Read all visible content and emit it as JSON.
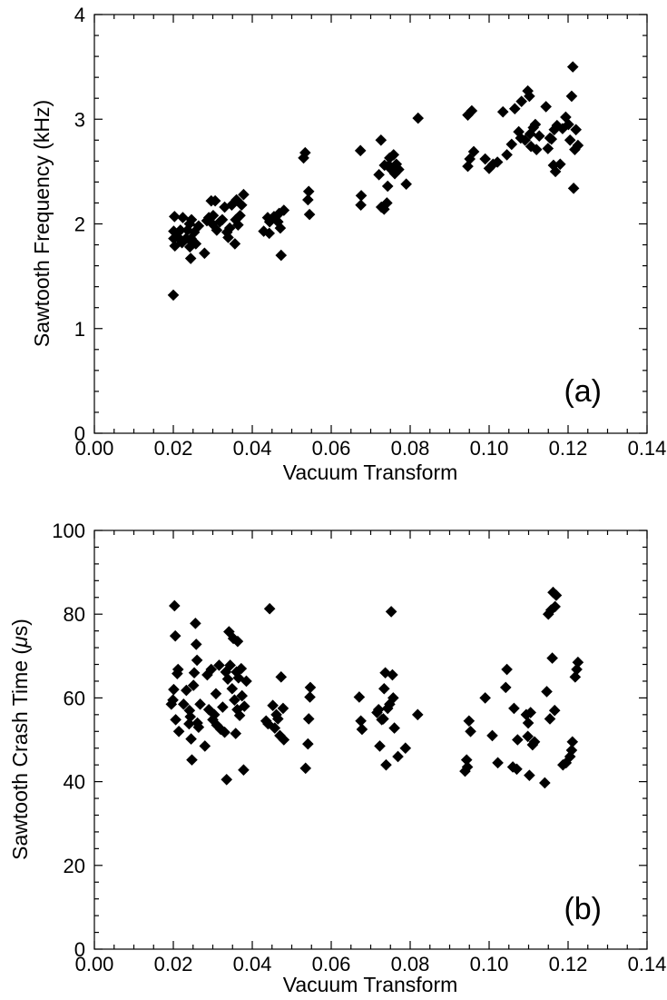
{
  "chart_data": [
    {
      "type": "scatter",
      "panel_label": "(a)",
      "xlabel": "Vacuum Transform",
      "ylabel": "Sawtooth Frequency (kHz)",
      "xlim": [
        0,
        0.14
      ],
      "ylim": [
        0,
        4
      ],
      "x_ticks": [
        0,
        0.02,
        0.04,
        0.06,
        0.08,
        0.1,
        0.12,
        0.14
      ],
      "x_tick_labels": [
        "0.00",
        "0.02",
        "0.04",
        "0.06",
        "0.08",
        "0.10",
        "0.12",
        "0.14"
      ],
      "y_ticks": [
        0,
        1,
        2,
        3,
        4
      ],
      "y_tick_labels": [
        "0",
        "1",
        "2",
        "3",
        "4"
      ],
      "marker": "diamond",
      "marker_color": "#000000",
      "grid": false,
      "legend": "none",
      "points": [
        [
          0.02,
          1.32
        ],
        [
          0.0201,
          1.86
        ],
        [
          0.0201,
          1.93
        ],
        [
          0.0203,
          2.07
        ],
        [
          0.0204,
          1.79
        ],
        [
          0.021,
          1.88
        ],
        [
          0.0218,
          1.94
        ],
        [
          0.0222,
          1.82
        ],
        [
          0.0224,
          2.06
        ],
        [
          0.0232,
          1.86
        ],
        [
          0.0236,
          1.94
        ],
        [
          0.0241,
          2.0
        ],
        [
          0.0242,
          1.78
        ],
        [
          0.0244,
          1.67
        ],
        [
          0.0245,
          1.86
        ],
        [
          0.0246,
          2.04
        ],
        [
          0.0249,
          1.82
        ],
        [
          0.0253,
          1.92
        ],
        [
          0.0257,
          1.81
        ],
        [
          0.0264,
          1.98
        ],
        [
          0.0279,
          1.72
        ],
        [
          0.0285,
          2.03
        ],
        [
          0.029,
          2.06
        ],
        [
          0.0296,
          2.22
        ],
        [
          0.0299,
          2.0
        ],
        [
          0.0301,
          2.08
        ],
        [
          0.0306,
          2.22
        ],
        [
          0.031,
          1.94
        ],
        [
          0.0318,
          2.02
        ],
        [
          0.0324,
          2.04
        ],
        [
          0.033,
          2.16
        ],
        [
          0.0336,
          1.92
        ],
        [
          0.0339,
          1.87
        ],
        [
          0.0343,
          1.96
        ],
        [
          0.0348,
          2.18
        ],
        [
          0.0356,
          1.81
        ],
        [
          0.0358,
          2.04
        ],
        [
          0.036,
          2.23
        ],
        [
          0.0364,
          1.99
        ],
        [
          0.0369,
          2.08
        ],
        [
          0.0373,
          2.18
        ],
        [
          0.0378,
          2.28
        ],
        [
          0.0429,
          1.93
        ],
        [
          0.0439,
          2.06
        ],
        [
          0.0443,
          1.91
        ],
        [
          0.0444,
          2.02
        ],
        [
          0.0455,
          2.07
        ],
        [
          0.0465,
          2.02
        ],
        [
          0.0468,
          2.1
        ],
        [
          0.0471,
          1.96
        ],
        [
          0.0473,
          1.7
        ],
        [
          0.048,
          2.13
        ],
        [
          0.053,
          2.63
        ],
        [
          0.0534,
          2.68
        ],
        [
          0.0541,
          2.23
        ],
        [
          0.0543,
          2.31
        ],
        [
          0.0545,
          2.09
        ],
        [
          0.0674,
          2.7
        ],
        [
          0.0675,
          2.18
        ],
        [
          0.0676,
          2.27
        ],
        [
          0.0721,
          2.47
        ],
        [
          0.0726,
          2.8
        ],
        [
          0.0727,
          2.16
        ],
        [
          0.0734,
          2.14
        ],
        [
          0.0735,
          2.56
        ],
        [
          0.0741,
          2.2
        ],
        [
          0.0743,
          2.36
        ],
        [
          0.0746,
          2.56
        ],
        [
          0.0748,
          2.63
        ],
        [
          0.0752,
          2.52
        ],
        [
          0.0758,
          2.66
        ],
        [
          0.0761,
          2.48
        ],
        [
          0.0765,
          2.57
        ],
        [
          0.0771,
          2.52
        ],
        [
          0.079,
          2.38
        ],
        [
          0.082,
          3.01
        ],
        [
          0.0946,
          2.55
        ],
        [
          0.0946,
          3.04
        ],
        [
          0.0951,
          2.62
        ],
        [
          0.0956,
          3.08
        ],
        [
          0.0961,
          2.69
        ],
        [
          0.099,
          2.62
        ],
        [
          0.1,
          2.53
        ],
        [
          0.101,
          2.57
        ],
        [
          0.1021,
          2.59
        ],
        [
          0.1035,
          3.07
        ],
        [
          0.1045,
          2.66
        ],
        [
          0.1057,
          2.76
        ],
        [
          0.1065,
          3.1
        ],
        [
          0.1075,
          2.88
        ],
        [
          0.108,
          2.82
        ],
        [
          0.1082,
          3.17
        ],
        [
          0.1091,
          2.8
        ],
        [
          0.1098,
          3.27
        ],
        [
          0.1102,
          3.22
        ],
        [
          0.1104,
          2.86
        ],
        [
          0.1106,
          2.74
        ],
        [
          0.1112,
          2.92
        ],
        [
          0.1117,
          2.95
        ],
        [
          0.112,
          2.71
        ],
        [
          0.1127,
          2.84
        ],
        [
          0.1144,
          3.12
        ],
        [
          0.1149,
          2.72
        ],
        [
          0.1154,
          2.82
        ],
        [
          0.1158,
          2.81
        ],
        [
          0.1163,
          2.56
        ],
        [
          0.1165,
          2.9
        ],
        [
          0.1168,
          2.5
        ],
        [
          0.1172,
          2.94
        ],
        [
          0.118,
          2.57
        ],
        [
          0.1186,
          2.91
        ],
        [
          0.1194,
          3.02
        ],
        [
          0.1201,
          2.95
        ],
        [
          0.1205,
          2.8
        ],
        [
          0.1209,
          3.22
        ],
        [
          0.1212,
          3.5
        ],
        [
          0.1214,
          2.34
        ],
        [
          0.1217,
          2.71
        ],
        [
          0.122,
          2.9
        ],
        [
          0.1225,
          2.75
        ]
      ]
    },
    {
      "type": "scatter",
      "panel_label": "(b)",
      "xlabel": "Vacuum Transform",
      "ylabel": "Sawtooth Crash Time (",
      "ylabel_symbol": "μ",
      "ylabel_unit_end": "s)",
      "xlim": [
        0,
        0.14
      ],
      "ylim": [
        0,
        100
      ],
      "x_ticks": [
        0,
        0.02,
        0.04,
        0.06,
        0.08,
        0.1,
        0.12,
        0.14
      ],
      "x_tick_labels": [
        "0.00",
        "0.02",
        "0.04",
        "0.06",
        "0.08",
        "0.10",
        "0.12",
        "0.14"
      ],
      "y_ticks": [
        0,
        20,
        40,
        60,
        80,
        100
      ],
      "y_tick_labels": [
        "0",
        "20",
        "40",
        "60",
        "80",
        "100"
      ],
      "marker": "diamond",
      "marker_color": "#000000",
      "grid": false,
      "legend": "none",
      "points": [
        [
          0.0195,
          58.5
        ],
        [
          0.0199,
          59.5
        ],
        [
          0.0201,
          62.0
        ],
        [
          0.0203,
          82.0
        ],
        [
          0.0205,
          74.8
        ],
        [
          0.0206,
          54.8
        ],
        [
          0.021,
          65.8
        ],
        [
          0.0212,
          66.8
        ],
        [
          0.0214,
          52.0
        ],
        [
          0.0226,
          58.5
        ],
        [
          0.0233,
          61.8
        ],
        [
          0.024,
          53.8
        ],
        [
          0.0241,
          57.0
        ],
        [
          0.0243,
          55.5
        ],
        [
          0.0245,
          50.2
        ],
        [
          0.0247,
          45.2
        ],
        [
          0.0251,
          63.0
        ],
        [
          0.0253,
          66.0
        ],
        [
          0.0256,
          77.8
        ],
        [
          0.0258,
          72.8
        ],
        [
          0.026,
          69.0
        ],
        [
          0.0261,
          54.0
        ],
        [
          0.0264,
          53.0
        ],
        [
          0.0268,
          58.5
        ],
        [
          0.028,
          48.5
        ],
        [
          0.0286,
          65.5
        ],
        [
          0.029,
          57.2
        ],
        [
          0.0296,
          66.8
        ],
        [
          0.03,
          54.8
        ],
        [
          0.0304,
          56.0
        ],
        [
          0.0308,
          61.0
        ],
        [
          0.031,
          53.5
        ],
        [
          0.0316,
          67.8
        ],
        [
          0.032,
          52.5
        ],
        [
          0.0325,
          57.8
        ],
        [
          0.033,
          51.8
        ],
        [
          0.0333,
          66.2
        ],
        [
          0.0335,
          40.5
        ],
        [
          0.0338,
          64.5
        ],
        [
          0.0341,
          75.8
        ],
        [
          0.0344,
          67.8
        ],
        [
          0.0349,
          62.2
        ],
        [
          0.0352,
          74.2
        ],
        [
          0.0355,
          59.5
        ],
        [
          0.0358,
          51.5
        ],
        [
          0.036,
          66.2
        ],
        [
          0.0362,
          57.2
        ],
        [
          0.0363,
          73.5
        ],
        [
          0.0365,
          64.8
        ],
        [
          0.0368,
          55.8
        ],
        [
          0.0372,
          67.0
        ],
        [
          0.0374,
          60.5
        ],
        [
          0.0378,
          42.8
        ],
        [
          0.038,
          58.0
        ],
        [
          0.0385,
          64.0
        ],
        [
          0.0435,
          54.5
        ],
        [
          0.044,
          53.8
        ],
        [
          0.0444,
          81.3
        ],
        [
          0.0452,
          58.2
        ],
        [
          0.0457,
          52.8
        ],
        [
          0.0461,
          56.0
        ],
        [
          0.0465,
          55.0
        ],
        [
          0.047,
          51.0
        ],
        [
          0.0473,
          65.0
        ],
        [
          0.0478,
          57.5
        ],
        [
          0.048,
          50.0
        ],
        [
          0.0535,
          43.2
        ],
        [
          0.0541,
          49.0
        ],
        [
          0.0543,
          55.0
        ],
        [
          0.0546,
          60.2
        ],
        [
          0.0547,
          62.5
        ],
        [
          0.0671,
          60.2
        ],
        [
          0.0675,
          54.5
        ],
        [
          0.0678,
          52.5
        ],
        [
          0.0716,
          56.5
        ],
        [
          0.072,
          57.2
        ],
        [
          0.0723,
          48.5
        ],
        [
          0.0728,
          54.8
        ],
        [
          0.0732,
          55.0
        ],
        [
          0.0734,
          62.2
        ],
        [
          0.0737,
          66.0
        ],
        [
          0.0739,
          44.0
        ],
        [
          0.0743,
          57.5
        ],
        [
          0.0748,
          58.5
        ],
        [
          0.0752,
          80.6
        ],
        [
          0.0755,
          65.5
        ],
        [
          0.0757,
          60.0
        ],
        [
          0.076,
          52.8
        ],
        [
          0.0769,
          46.0
        ],
        [
          0.0788,
          48.0
        ],
        [
          0.0819,
          56.0
        ],
        [
          0.0939,
          42.5
        ],
        [
          0.0943,
          45.2
        ],
        [
          0.0945,
          43.5
        ],
        [
          0.0949,
          54.5
        ],
        [
          0.0953,
          52.0
        ],
        [
          0.099,
          60.0
        ],
        [
          0.1008,
          51.0
        ],
        [
          0.1022,
          44.5
        ],
        [
          0.1042,
          62.5
        ],
        [
          0.1045,
          66.8
        ],
        [
          0.106,
          43.5
        ],
        [
          0.1063,
          57.5
        ],
        [
          0.107,
          43.0
        ],
        [
          0.1072,
          50.0
        ],
        [
          0.1094,
          56.0
        ],
        [
          0.1098,
          50.8
        ],
        [
          0.1099,
          54.0
        ],
        [
          0.1102,
          41.5
        ],
        [
          0.1105,
          56.5
        ],
        [
          0.111,
          48.8
        ],
        [
          0.1115,
          49.5
        ],
        [
          0.1141,
          39.7
        ],
        [
          0.1146,
          61.5
        ],
        [
          0.115,
          80.0
        ],
        [
          0.1154,
          55.0
        ],
        [
          0.1157,
          81.0
        ],
        [
          0.116,
          69.5
        ],
        [
          0.1162,
          85.2
        ],
        [
          0.1166,
          57.0
        ],
        [
          0.1167,
          81.8
        ],
        [
          0.117,
          84.5
        ],
        [
          0.1187,
          44.0
        ],
        [
          0.1195,
          44.5
        ],
        [
          0.1205,
          46.0
        ],
        [
          0.1209,
          47.5
        ],
        [
          0.1211,
          49.5
        ],
        [
          0.1218,
          65.0
        ],
        [
          0.1222,
          66.8
        ],
        [
          0.1225,
          68.5
        ]
      ]
    }
  ]
}
